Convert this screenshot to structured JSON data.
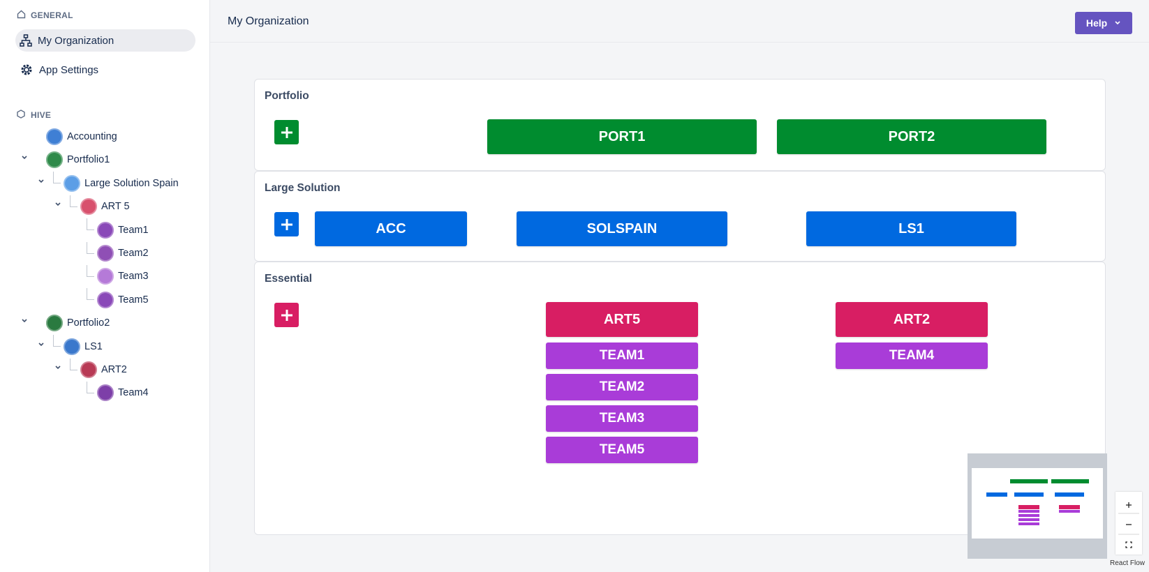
{
  "sidebar": {
    "general_heading": "GENERAL",
    "nav": [
      "My Organization",
      "App Settings"
    ],
    "hive_heading": "HIVE",
    "tree": [
      {
        "label": "Accounting",
        "color": "#3f7fd4"
      },
      {
        "label": "Portfolio1",
        "color": "#2f8a4a",
        "children": [
          {
            "label": "Large Solution Spain",
            "color": "#5c9ee6",
            "children": [
              {
                "label": "ART 5",
                "color": "#d8516d",
                "children": [
                  {
                    "label": "Team1",
                    "color": "#8a49b8"
                  },
                  {
                    "label": "Team2",
                    "color": "#8f4fb5"
                  },
                  {
                    "label": "Team3",
                    "color": "#b57ad8"
                  },
                  {
                    "label": "Team5",
                    "color": "#8a49b8"
                  }
                ]
              }
            ]
          }
        ]
      },
      {
        "label": "Portfolio2",
        "color": "#2a7a40",
        "children": [
          {
            "label": "LS1",
            "color": "#3a78cc",
            "children": [
              {
                "label": "ART2",
                "color": "#b83a55",
                "children": [
                  {
                    "label": "Team4",
                    "color": "#7d3fa8"
                  }
                ]
              }
            ]
          }
        ]
      }
    ]
  },
  "header": {
    "title": "My Organization",
    "help_button": "Help"
  },
  "canvas": {
    "sections": [
      {
        "title": "Portfolio",
        "nodes": [
          "PORT1",
          "PORT2"
        ]
      },
      {
        "title": "Large Solution",
        "nodes": [
          "ACC",
          "SOLSPAIN",
          "LS1"
        ]
      },
      {
        "title": "Essential",
        "groups": [
          {
            "art": "ART5",
            "teams": [
              "TEAM1",
              "TEAM2",
              "TEAM3",
              "TEAM5"
            ]
          },
          {
            "art": "ART2",
            "teams": [
              "TEAM4"
            ]
          }
        ]
      }
    ]
  },
  "attribution": "React Flow"
}
